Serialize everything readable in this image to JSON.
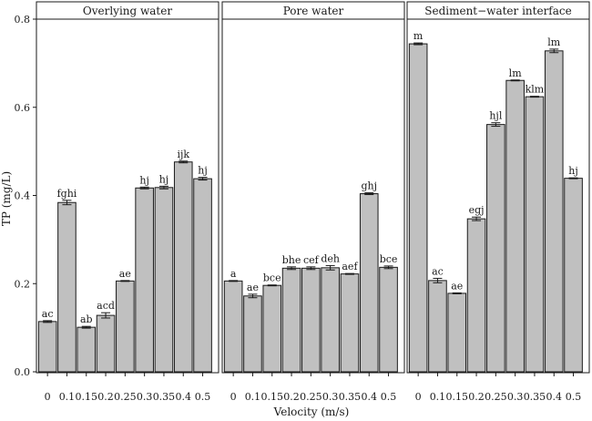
{
  "chart_data": {
    "type": "bar",
    "ylabel": "TP (mg/L)",
    "xlabel": "Velocity (m/s)",
    "ylim": [
      0,
      0.8
    ],
    "yticks": [
      "0.0",
      "0.2",
      "0.4",
      "0.6",
      "0.8"
    ],
    "categories": [
      "0",
      "0.1",
      "0.15",
      "0.2",
      "0.25",
      "0.3",
      "0.35",
      "0.4",
      "0.5"
    ],
    "grid": false,
    "bar_color": "#c0c0c0",
    "panels": [
      {
        "title": "Overlying water",
        "values": [
          0.114,
          0.384,
          0.101,
          0.128,
          0.206,
          0.417,
          0.418,
          0.476,
          0.438
        ],
        "errors": [
          0.002,
          0.005,
          0.002,
          0.006,
          0.001,
          0.002,
          0.003,
          0.002,
          0.003
        ],
        "labels": [
          "ac",
          "fghi",
          "ab",
          "acd",
          "ae",
          "hj",
          "hj",
          "ijk",
          "hj"
        ]
      },
      {
        "title": "Pore water",
        "values": [
          0.206,
          0.172,
          0.196,
          0.235,
          0.235,
          0.236,
          0.222,
          0.404,
          0.237
        ],
        "errors": [
          0.001,
          0.004,
          0.001,
          0.003,
          0.003,
          0.005,
          0.001,
          0.002,
          0.003
        ],
        "labels": [
          "a",
          "ae",
          "bce",
          "bhe",
          "cef",
          "deh",
          "aef",
          "ghj",
          "bce"
        ]
      },
      {
        "title": "Sediment−water interface",
        "values": [
          0.744,
          0.207,
          0.178,
          0.347,
          0.561,
          0.661,
          0.624,
          0.728,
          0.439
        ],
        "errors": [
          0.002,
          0.005,
          0.001,
          0.004,
          0.004,
          0.001,
          0.001,
          0.004,
          0.001
        ],
        "labels": [
          "m",
          "ac",
          "ae",
          "egj",
          "hjl",
          "lm",
          "klm",
          "lm",
          "hj"
        ]
      }
    ]
  }
}
